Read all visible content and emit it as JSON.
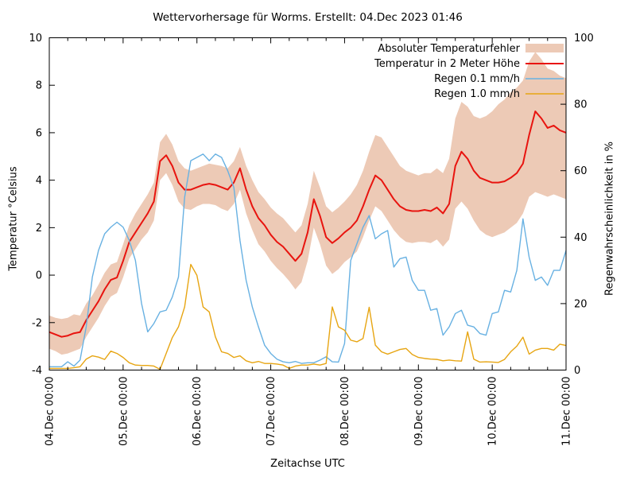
{
  "chart_data": {
    "type": "line",
    "title": "Wettervorhersage für Worms. Erstellt: 04.Dec 2023 01:46",
    "xlabel": "Zeitachse UTC",
    "ylabel_left": "Temperatur °Celsius",
    "ylabel_right": "Regenwahrscheinlichkeit in %",
    "background_color": "#ffffff",
    "axis_color": "#000000",
    "grid": false,
    "legend_position": "top-right-inside",
    "x_unit": "hours since 04.Dec 00:00 UTC",
    "x_range_hours": [
      0,
      168
    ],
    "x_step_hours": 2,
    "x_major_tick_hours": 24,
    "x_minor_tick_hours": 6,
    "x_tick_labels": [
      "04.Dec 00:00",
      "05.Dec 00:00",
      "06.Dec 00:00",
      "07.Dec 00:00",
      "08.Dec 00:00",
      "09.Dec 00:00",
      "10.Dec 00:00",
      "11.Dec 00:00"
    ],
    "ylim_left": [
      -4,
      10
    ],
    "ylim_right": [
      0,
      100
    ],
    "y_left_ticks": [
      10,
      8,
      6,
      4,
      2,
      0,
      -2,
      -4
    ],
    "y_right_ticks": [
      100,
      80,
      60,
      40,
      20,
      0
    ],
    "series": [
      {
        "name": "Absoluter Temperaturfehler",
        "type": "band",
        "axis": "left",
        "color": "#edcab6",
        "upper": [
          -1.7,
          -1.8,
          -1.85,
          -1.8,
          -1.65,
          -1.7,
          -1.2,
          -0.85,
          -0.4,
          0.1,
          0.45,
          0.55,
          1.3,
          2.1,
          2.6,
          3,
          3.4,
          3.9,
          5.6,
          5.95,
          5.5,
          4.8,
          4.5,
          4.4,
          4.5,
          4.6,
          4.7,
          4.65,
          4.6,
          4.5,
          4.8,
          5.4,
          4.6,
          4,
          3.5,
          3.2,
          2.85,
          2.6,
          2.4,
          2.1,
          1.8,
          2.1,
          3,
          4.4,
          3.7,
          2.9,
          2.65,
          2.85,
          3.1,
          3.4,
          3.8,
          4.4,
          5.2,
          5.9,
          5.8,
          5.4,
          5,
          4.6,
          4.4,
          4.3,
          4.2,
          4.3,
          4.3,
          4.5,
          4.3,
          4.9,
          6.6,
          7.3,
          7.1,
          6.7,
          6.6,
          6.7,
          6.9,
          7.2,
          7.4,
          7.7,
          7.9,
          8.2,
          9,
          9.4,
          9.1,
          8.7,
          8.6,
          8.4,
          8.3
        ],
        "lower": [
          -3.1,
          -3.2,
          -3.35,
          -3.3,
          -3.2,
          -3.1,
          -2.6,
          -2.2,
          -1.8,
          -1.3,
          -0.9,
          -0.75,
          -0.1,
          0.7,
          1.1,
          1.5,
          1.8,
          2.3,
          4,
          4.3,
          3.8,
          3.1,
          2.8,
          2.75,
          2.9,
          3,
          3,
          2.95,
          2.8,
          2.7,
          3,
          3.6,
          2.6,
          1.9,
          1.3,
          1,
          0.6,
          0.3,
          0.05,
          -0.25,
          -0.6,
          -0.3,
          0.6,
          2,
          1.3,
          0.4,
          0.05,
          0.25,
          0.55,
          0.75,
          1,
          1.6,
          2.3,
          2.9,
          2.7,
          2.3,
          1.9,
          1.6,
          1.4,
          1.35,
          1.4,
          1.4,
          1.35,
          1.5,
          1.2,
          1.5,
          2.8,
          3.1,
          2.8,
          2.3,
          1.9,
          1.7,
          1.6,
          1.7,
          1.8,
          2,
          2.2,
          2.6,
          3.3,
          3.5,
          3.4,
          3.3,
          3.4,
          3.3,
          3.2
        ]
      },
      {
        "name": "Temperatur in 2 Meter Höhe",
        "type": "line",
        "axis": "left",
        "color": "#e8140f",
        "values": [
          -2.4,
          -2.5,
          -2.6,
          -2.55,
          -2.45,
          -2.4,
          -1.9,
          -1.5,
          -1.1,
          -0.6,
          -0.2,
          -0.1,
          0.6,
          1.4,
          1.8,
          2.2,
          2.6,
          3.1,
          4.8,
          5.05,
          4.6,
          3.9,
          3.6,
          3.6,
          3.7,
          3.8,
          3.85,
          3.8,
          3.7,
          3.6,
          3.9,
          4.5,
          3.6,
          2.9,
          2.4,
          2.1,
          1.7,
          1.4,
          1.2,
          0.9,
          0.6,
          0.9,
          1.8,
          3.2,
          2.5,
          1.6,
          1.35,
          1.55,
          1.8,
          2,
          2.3,
          2.9,
          3.6,
          4.2,
          4,
          3.6,
          3.2,
          2.9,
          2.75,
          2.7,
          2.7,
          2.75,
          2.7,
          2.85,
          2.6,
          3,
          4.6,
          5.2,
          4.9,
          4.4,
          4.1,
          4,
          3.9,
          3.9,
          3.95,
          4.1,
          4.3,
          4.7,
          5.9,
          6.9,
          6.6,
          6.2,
          6.3,
          6.1,
          6
        ]
      },
      {
        "name": "Regen 0.1 mm/h",
        "type": "line",
        "axis": "right",
        "color": "#68b1e2",
        "values": [
          1,
          1,
          1,
          2.5,
          1.2,
          3,
          13,
          28,
          36,
          41,
          43,
          44.5,
          43,
          39,
          33,
          20,
          11.5,
          14,
          17.5,
          18,
          22,
          28,
          52,
          63,
          64,
          65,
          63,
          65,
          64,
          60,
          55,
          39,
          27,
          19,
          13,
          7.5,
          5,
          3.3,
          2.5,
          2.2,
          2.6,
          2,
          2.2,
          2.2,
          3,
          4,
          2.5,
          2.4,
          8,
          33,
          38,
          43,
          46.5,
          39.5,
          41,
          42,
          31,
          33.5,
          34,
          27,
          24,
          24,
          18,
          18.5,
          10.5,
          13,
          17,
          18,
          13.5,
          13,
          11,
          10.5,
          17,
          17.5,
          24,
          23.5,
          30,
          45.5,
          34,
          27,
          28,
          25.5,
          30,
          30,
          36
        ]
      },
      {
        "name": "Regen 1.0 mm/h",
        "type": "line",
        "axis": "right",
        "color": "#e7a512",
        "values": [
          0.5,
          0.5,
          0.5,
          0.5,
          0.7,
          1,
          3.3,
          4.3,
          3.9,
          3.2,
          5.7,
          5,
          3.8,
          2.2,
          1.5,
          1.4,
          1.4,
          1.2,
          0.2,
          5,
          9.8,
          13,
          19,
          31.8,
          28.5,
          19,
          17.5,
          10,
          5.5,
          5,
          3.8,
          4.3,
          2.8,
          2.2,
          2.6,
          2,
          2,
          1.8,
          1.5,
          0.5,
          1.2,
          1.5,
          1.5,
          1.8,
          1.5,
          2,
          19,
          13,
          12,
          9,
          8.5,
          9.5,
          18.9,
          7.5,
          5.5,
          4.8,
          5.5,
          6.2,
          6.5,
          4.7,
          3.8,
          3.5,
          3.3,
          3.2,
          2.8,
          3,
          2.8,
          2.7,
          11.5,
          3.3,
          2.4,
          2.5,
          2.4,
          2.3,
          3.2,
          5.5,
          7.2,
          9.9,
          4.8,
          6,
          6.5,
          6.5,
          6,
          7.8,
          7.4
        ]
      }
    ]
  }
}
